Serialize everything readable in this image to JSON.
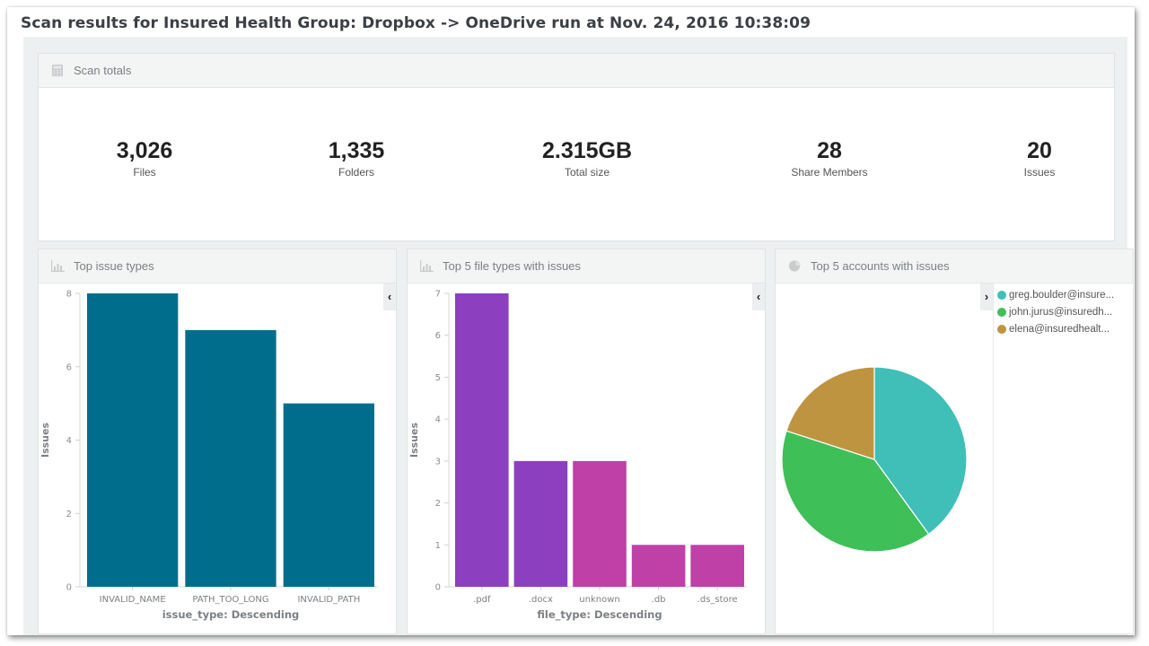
{
  "page": {
    "title": "Scan results for Insured Health Group: Dropbox -> OneDrive run at Nov. 24, 2016 10:38:09"
  },
  "scan_totals": {
    "title": "Scan totals",
    "icon": "calculator-icon",
    "metrics": [
      {
        "value": "3,026",
        "label": "Files"
      },
      {
        "value": "1,335",
        "label": "Folders"
      },
      {
        "value": "2.315GB",
        "label": "Total size"
      },
      {
        "value": "28",
        "label": "Share Members"
      },
      {
        "value": "20",
        "label": "Issues"
      }
    ]
  },
  "panels": {
    "issue_types": {
      "title": "Top issue types",
      "icon": "bar-chart-icon",
      "collapse_icon": "chevron-left-icon"
    },
    "file_types": {
      "title": "Top 5 file types with issues",
      "icon": "bar-chart-icon",
      "collapse_icon": "chevron-left-icon"
    },
    "accounts": {
      "title": "Top 5 accounts with issues",
      "icon": "pie-chart-icon",
      "collapse_icon": "chevron-right-icon"
    }
  },
  "chart_data": [
    {
      "type": "bar",
      "title": "Top issue types",
      "categories": [
        "INVALID_NAME",
        "PATH_TOO_LONG",
        "INVALID_PATH"
      ],
      "values": [
        8,
        7,
        5
      ],
      "xlabel": "issue_type: Descending",
      "ylabel": "Issues",
      "ylim": [
        0,
        8
      ],
      "yticks": [
        0,
        2,
        4,
        6,
        8
      ],
      "colors": [
        "#006d8c",
        "#006d8c",
        "#006d8c"
      ],
      "grid": false
    },
    {
      "type": "bar",
      "title": "Top 5 file types with issues",
      "categories": [
        ".pdf",
        ".docx",
        "unknown",
        ".db",
        ".ds_store"
      ],
      "values": [
        7,
        3,
        3,
        1,
        1
      ],
      "xlabel": "file_type: Descending",
      "ylabel": "Issues",
      "ylim": [
        0,
        7
      ],
      "yticks": [
        0,
        1,
        2,
        3,
        4,
        5,
        6,
        7
      ],
      "colors": [
        "#8c3fbf",
        "#8c3fbf",
        "#bf40a6",
        "#bf40a6",
        "#bf40a6"
      ],
      "grid": false
    },
    {
      "type": "pie",
      "title": "Top 5 accounts with issues",
      "labels": [
        "greg.boulder@insure...",
        "john.jurus@insuredh...",
        "elena@insuredhealt..."
      ],
      "values": [
        8,
        8,
        4
      ],
      "colors": [
        "#3fbfb8",
        "#3fbf58",
        "#bf9440"
      ],
      "legend": "right"
    }
  ]
}
